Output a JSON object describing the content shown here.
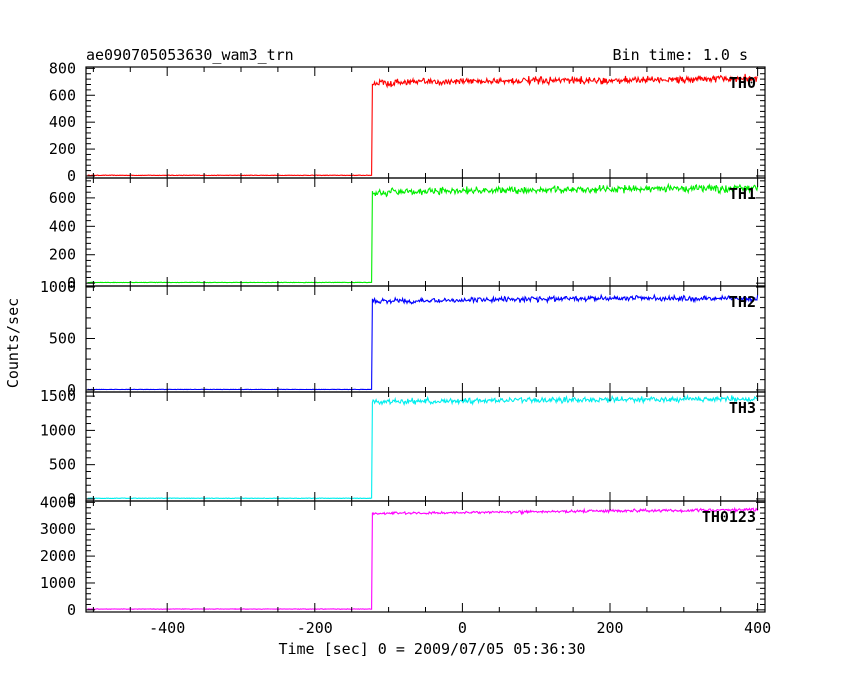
{
  "header": {
    "title": "ae090705053630_wam3_trn",
    "bin_time": "Bin time: 1.0 s"
  },
  "chart_data": {
    "type": "line",
    "xlabel": "Time [sec] 0 = 2009/07/05 05:36:30",
    "ylabel": "Counts/sec",
    "xlim": [
      -510,
      410
    ],
    "x_ticks": [
      -400,
      -200,
      0,
      200,
      400
    ],
    "grid": false,
    "step_time": -122,
    "panels": [
      {
        "name": "TH0",
        "color": "#ff0000",
        "ylim": [
          -15,
          810
        ],
        "y_ticks": [
          0,
          200,
          400,
          600,
          800
        ],
        "baseline": 5,
        "levels": [
          [
            -120,
            690
          ],
          [
            0,
            705
          ],
          [
            200,
            710
          ],
          [
            400,
            725
          ]
        ],
        "noise": 25
      },
      {
        "name": "TH1",
        "color": "#00ee00",
        "ylim": [
          -20,
          740
        ],
        "y_ticks": [
          0,
          200,
          400,
          600
        ],
        "baseline": 5,
        "levels": [
          [
            -120,
            640
          ],
          [
            0,
            650
          ],
          [
            200,
            660
          ],
          [
            400,
            670
          ]
        ],
        "noise": 25
      },
      {
        "name": "TH2",
        "color": "#0000ff",
        "ylim": [
          -20,
          1010
        ],
        "y_ticks": [
          0,
          500,
          1000
        ],
        "baseline": 5,
        "levels": [
          [
            -120,
            860
          ],
          [
            0,
            875
          ],
          [
            200,
            890
          ],
          [
            400,
            890
          ]
        ],
        "noise": 25
      },
      {
        "name": "TH3",
        "color": "#00eeee",
        "ylim": [
          -30,
          1560
        ],
        "y_ticks": [
          0,
          500,
          1000,
          1500
        ],
        "baseline": 10,
        "levels": [
          [
            -120,
            1420
          ],
          [
            0,
            1430
          ],
          [
            200,
            1450
          ],
          [
            400,
            1460
          ]
        ],
        "noise": 40
      },
      {
        "name": "TH0123",
        "color": "#ff00ff",
        "ylim": [
          -80,
          4050
        ],
        "y_ticks": [
          0,
          1000,
          2000,
          3000,
          4000
        ],
        "baseline": 30,
        "levels": [
          [
            -120,
            3580
          ],
          [
            0,
            3620
          ],
          [
            200,
            3680
          ],
          [
            400,
            3720
          ]
        ],
        "noise": 50
      }
    ]
  }
}
